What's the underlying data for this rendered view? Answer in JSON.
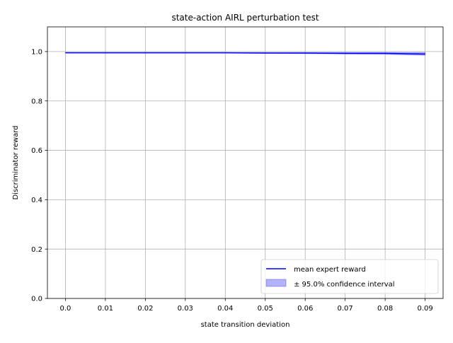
{
  "chart_data": {
    "type": "line",
    "title": "state-action AIRL perturbation test",
    "xlabel": "state transition deviation",
    "ylabel": "Discriminator reward",
    "xlim": [
      -0.0045,
      0.0945
    ],
    "ylim": [
      0.0,
      1.1
    ],
    "xticks": [
      0.0,
      0.01,
      0.02,
      0.03,
      0.04,
      0.05,
      0.06,
      0.07,
      0.08,
      0.09
    ],
    "xtick_labels": [
      "0.0",
      "0.01",
      "0.02",
      "0.03",
      "0.04",
      "0.05",
      "0.06",
      "0.07",
      "0.08",
      "0.09"
    ],
    "yticks": [
      0.0,
      0.2,
      0.4,
      0.6,
      0.8,
      1.0
    ],
    "ytick_labels": [
      "0.0",
      "0.2",
      "0.4",
      "0.6",
      "0.8",
      "1.0"
    ],
    "grid": true,
    "legend_position": "lower-right",
    "x": [
      0.0,
      0.01,
      0.02,
      0.03,
      0.04,
      0.05,
      0.06,
      0.07,
      0.08,
      0.09
    ],
    "series": [
      {
        "name": "mean expert reward",
        "kind": "line",
        "color": "#0000ff",
        "values": [
          0.995,
          0.995,
          0.995,
          0.995,
          0.995,
          0.994,
          0.994,
          0.993,
          0.993,
          0.99
        ]
      },
      {
        "name": "± 95.0% confidence interval",
        "kind": "band",
        "color": "#0000ff",
        "opacity": 0.3,
        "lower": [
          0.994,
          0.994,
          0.994,
          0.994,
          0.994,
          0.993,
          0.992,
          0.99,
          0.989,
          0.985
        ],
        "upper": [
          0.996,
          0.996,
          0.996,
          0.996,
          0.996,
          0.996,
          0.996,
          0.996,
          0.996,
          0.996
        ]
      }
    ]
  }
}
